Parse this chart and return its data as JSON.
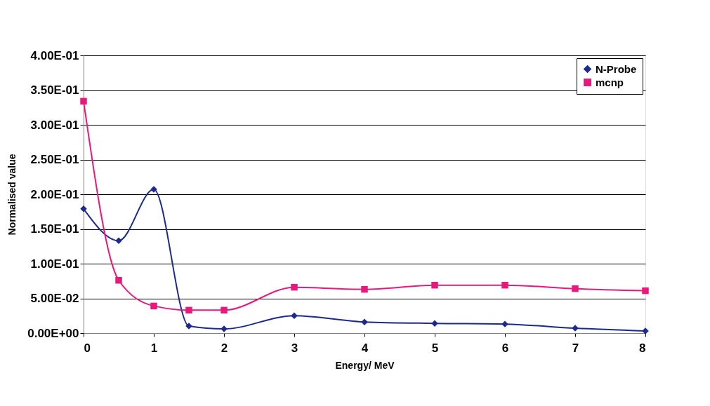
{
  "chart_data": {
    "type": "line",
    "xlabel": "Energy/ MeV",
    "ylabel": "Normalised value",
    "x": [
      0,
      0.5,
      1,
      1.5,
      2,
      3,
      4,
      5,
      6,
      7,
      8
    ],
    "series": [
      {
        "name": "N-Probe",
        "color": "#1c2a8c",
        "marker": "diamond",
        "values": [
          0.179,
          0.133,
          0.207,
          0.01,
          0.006,
          0.025,
          0.016,
          0.014,
          0.013,
          0.007,
          0.003
        ]
      },
      {
        "name": "mcnp",
        "color": "#e8197d",
        "marker": "square",
        "values": [
          0.334,
          0.076,
          0.039,
          0.033,
          0.033,
          0.066,
          0.063,
          0.069,
          0.069,
          0.064,
          0.061
        ]
      }
    ],
    "xlim": [
      0,
      8
    ],
    "xticks": [
      0,
      1,
      2,
      3,
      4,
      5,
      6,
      7,
      8
    ],
    "ylim": [
      0,
      0.4
    ],
    "yticks": [
      {
        "value": 0,
        "label": "0.00E+00"
      },
      {
        "value": 0.05,
        "label": "5.00E-02"
      },
      {
        "value": 0.1,
        "label": "1.00E-01"
      },
      {
        "value": 0.15,
        "label": "1.50E-01"
      },
      {
        "value": 0.2,
        "label": "2.00E-01"
      },
      {
        "value": 0.25,
        "label": "2.50E-01"
      },
      {
        "value": 0.3,
        "label": "3.00E-01"
      },
      {
        "value": 0.35,
        "label": "3.50E-01"
      },
      {
        "value": 0.4,
        "label": "4.00E-01"
      }
    ],
    "grid": "y",
    "legend": "top right",
    "line_style": "solid"
  }
}
